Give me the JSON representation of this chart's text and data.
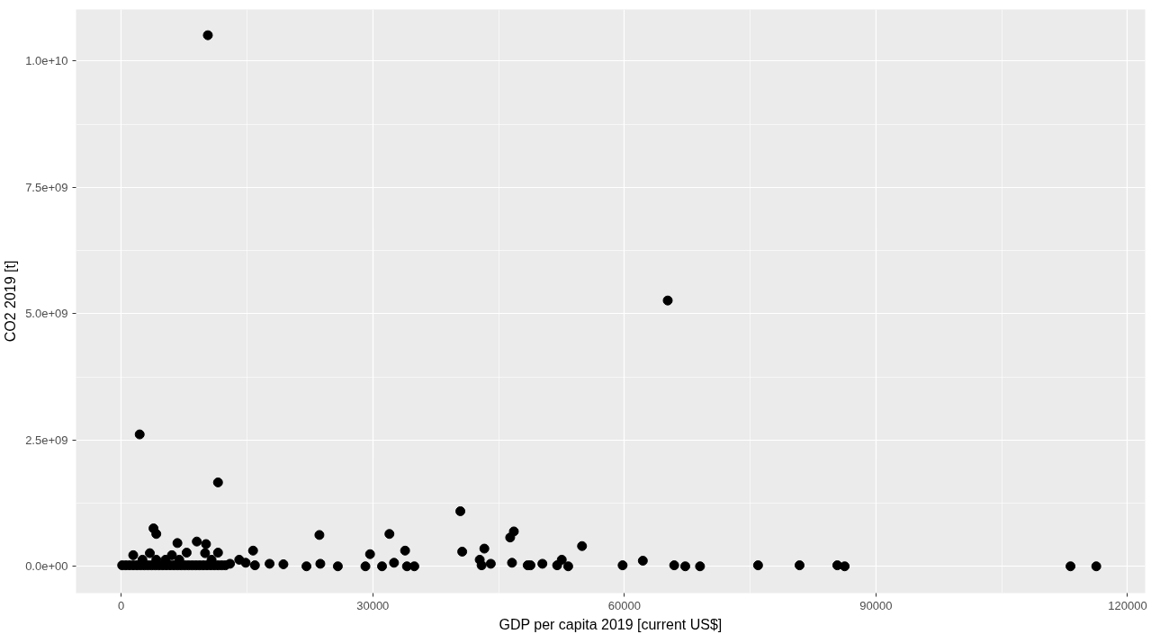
{
  "chart_data": {
    "type": "scatter",
    "xlabel": "GDP per capita 2019 [current US$]",
    "ylabel": "CO2 2019 [t]",
    "xlim": [
      -5390,
      122100
    ],
    "ylim": [
      -530000000,
      11020000000
    ],
    "xticks": [
      0,
      30000,
      60000,
      90000,
      120000
    ],
    "yticks": [
      {
        "value": 0,
        "label": "0.0e+00"
      },
      {
        "value": 2500000000,
        "label": "2.5e+09"
      },
      {
        "value": 5000000000,
        "label": "5.0e+09"
      },
      {
        "value": 7500000000,
        "label": "7.5e+09"
      },
      {
        "value": 10000000000,
        "label": "1.0e+10"
      }
    ],
    "grid": true,
    "marker": "circle",
    "series": [
      {
        "color": "#000000",
        "x": [
          10330,
          65170,
          2200,
          11540,
          40440,
          3850,
          4180,
          6700,
          7800,
          9010,
          10110,
          11540,
          1430,
          3410,
          6040,
          12970,
          15720,
          14840,
          15940,
          17690,
          19340,
          23630,
          22090,
          23740,
          25830,
          29120,
          29670,
          31980,
          33850,
          31100,
          32530,
          34070,
          34950,
          40660,
          42750,
          42970,
          44070,
          43300,
          46380,
          46820,
          46600,
          48470,
          48800,
          50220,
          51980,
          52530,
          53300,
          54950,
          59790,
          62200,
          65940,
          67260,
          69020,
          75940,
          80890,
          85390,
          86270,
          113200,
          116270,
          110,
          550,
          990,
          1430,
          1870,
          2310,
          2750,
          3190,
          3630,
          4070,
          4510,
          4950,
          5390,
          5830,
          6270,
          6710,
          7140,
          7580,
          8020,
          8460,
          8900,
          9340,
          9780,
          10220,
          10660,
          11100,
          11540,
          11980,
          12420,
          2530,
          4180,
          5280,
          6920,
          10770,
          14070,
          10000
        ],
        "values": [
          10510000000,
          5260000000,
          2610000000,
          1660000000,
          1090000000,
          750000000,
          640000000,
          460000000,
          270000000,
          490000000,
          440000000,
          270000000,
          220000000,
          260000000,
          220000000,
          50000000,
          310000000,
          70000000,
          20000000,
          50000000,
          40000000,
          620000000,
          0,
          50000000,
          0,
          0,
          240000000,
          640000000,
          310000000,
          0,
          70000000,
          0,
          0,
          290000000,
          130000000,
          20000000,
          50000000,
          350000000,
          570000000,
          690000000,
          70000000,
          20000000,
          20000000,
          50000000,
          20000000,
          130000000,
          0,
          400000000,
          20000000,
          110000000,
          20000000,
          0,
          0,
          20000000,
          20000000,
          20000000,
          0,
          0,
          0,
          20000000,
          20000000,
          20000000,
          20000000,
          20000000,
          20000000,
          20000000,
          20000000,
          20000000,
          20000000,
          20000000,
          20000000,
          20000000,
          20000000,
          20000000,
          20000000,
          20000000,
          20000000,
          20000000,
          20000000,
          20000000,
          20000000,
          20000000,
          20000000,
          20000000,
          20000000,
          20000000,
          20000000,
          20000000,
          130000000,
          130000000,
          130000000,
          130000000,
          130000000,
          130000000,
          260000000
        ]
      }
    ]
  }
}
